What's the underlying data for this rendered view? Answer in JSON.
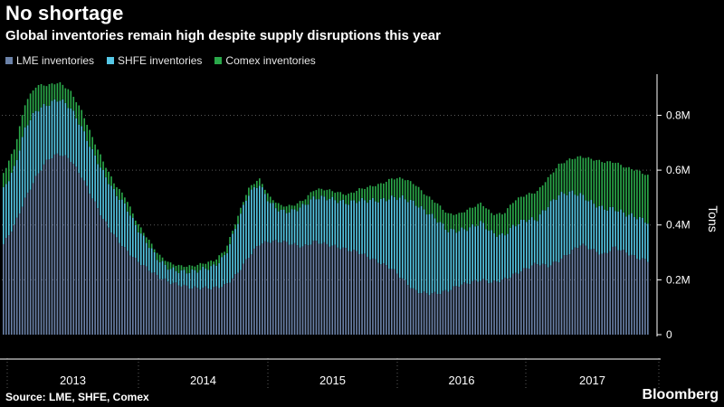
{
  "header": {
    "title": "No shortage",
    "subtitle": "Global inventories remain high despite supply disruptions this year"
  },
  "legend": [
    {
      "label": "LME inventories",
      "color": "#6b82a8"
    },
    {
      "label": "SHFE inventories",
      "color": "#56c8e6"
    },
    {
      "label": "Comex inventories",
      "color": "#2aa84a"
    }
  ],
  "footer": {
    "source": "Source: LME, SHFE, Comex",
    "brand": "Bloomberg"
  },
  "chart_data": {
    "type": "bar",
    "stacked": true,
    "ylabel": "Tons",
    "ylim": [
      0,
      0.95
    ],
    "yticks": [
      0,
      0.2,
      0.4,
      0.6,
      0.8
    ],
    "ytick_labels": [
      "0",
      "0.2M",
      "0.4M",
      "0.6M",
      "0.8M"
    ],
    "year_labels": [
      "2013",
      "2014",
      "2015",
      "2016",
      "2017"
    ],
    "grid": true,
    "legend_position": "top-left",
    "units": "million tons",
    "x": [
      "2012-11",
      "2012-12",
      "2013-01",
      "2013-02",
      "2013-03",
      "2013-04",
      "2013-05",
      "2013-06",
      "2013-07",
      "2013-08",
      "2013-09",
      "2013-10",
      "2013-11",
      "2013-12",
      "2014-01",
      "2014-02",
      "2014-03",
      "2014-04",
      "2014-05",
      "2014-06",
      "2014-07",
      "2014-08",
      "2014-09",
      "2014-10",
      "2014-11",
      "2014-12",
      "2015-01",
      "2015-02",
      "2015-03",
      "2015-04",
      "2015-05",
      "2015-06",
      "2015-07",
      "2015-08",
      "2015-09",
      "2015-10",
      "2015-11",
      "2015-12",
      "2016-01",
      "2016-02",
      "2016-03",
      "2016-04",
      "2016-05",
      "2016-06",
      "2016-07",
      "2016-08",
      "2016-09",
      "2016-10",
      "2016-11",
      "2016-12",
      "2017-01",
      "2017-02",
      "2017-03",
      "2017-04",
      "2017-05",
      "2017-06",
      "2017-07",
      "2017-08",
      "2017-09"
    ],
    "series": [
      {
        "name": "LME inventories",
        "color": "#6b82a8",
        "values": [
          0.33,
          0.4,
          0.5,
          0.58,
          0.64,
          0.66,
          0.64,
          0.58,
          0.5,
          0.42,
          0.36,
          0.31,
          0.27,
          0.24,
          0.21,
          0.19,
          0.18,
          0.17,
          0.17,
          0.17,
          0.18,
          0.22,
          0.28,
          0.33,
          0.34,
          0.34,
          0.33,
          0.32,
          0.34,
          0.33,
          0.32,
          0.31,
          0.3,
          0.28,
          0.26,
          0.24,
          0.2,
          0.16,
          0.15,
          0.15,
          0.16,
          0.18,
          0.19,
          0.2,
          0.19,
          0.2,
          0.22,
          0.24,
          0.26,
          0.25,
          0.27,
          0.3,
          0.33,
          0.31,
          0.29,
          0.32,
          0.3,
          0.28,
          0.27
        ]
      },
      {
        "name": "SHFE inventories",
        "color": "#56c8e6",
        "values": [
          0.2,
          0.21,
          0.26,
          0.24,
          0.2,
          0.2,
          0.19,
          0.18,
          0.17,
          0.17,
          0.16,
          0.16,
          0.12,
          0.09,
          0.06,
          0.05,
          0.05,
          0.06,
          0.07,
          0.08,
          0.11,
          0.18,
          0.23,
          0.22,
          0.14,
          0.11,
          0.12,
          0.15,
          0.16,
          0.17,
          0.17,
          0.17,
          0.19,
          0.21,
          0.23,
          0.26,
          0.3,
          0.32,
          0.3,
          0.27,
          0.22,
          0.2,
          0.2,
          0.21,
          0.18,
          0.16,
          0.18,
          0.18,
          0.16,
          0.22,
          0.24,
          0.22,
          0.18,
          0.17,
          0.17,
          0.14,
          0.14,
          0.15,
          0.14
        ]
      },
      {
        "name": "Comex inventories",
        "color": "#2aa84a",
        "values": [
          0.06,
          0.07,
          0.09,
          0.09,
          0.07,
          0.06,
          0.06,
          0.06,
          0.05,
          0.04,
          0.03,
          0.03,
          0.02,
          0.02,
          0.02,
          0.02,
          0.02,
          0.02,
          0.02,
          0.02,
          0.02,
          0.02,
          0.02,
          0.02,
          0.02,
          0.02,
          0.02,
          0.02,
          0.03,
          0.03,
          0.03,
          0.03,
          0.04,
          0.05,
          0.06,
          0.07,
          0.07,
          0.07,
          0.06,
          0.06,
          0.06,
          0.06,
          0.07,
          0.07,
          0.07,
          0.08,
          0.09,
          0.09,
          0.1,
          0.1,
          0.11,
          0.12,
          0.14,
          0.16,
          0.17,
          0.17,
          0.17,
          0.17,
          0.17
        ]
      }
    ]
  }
}
